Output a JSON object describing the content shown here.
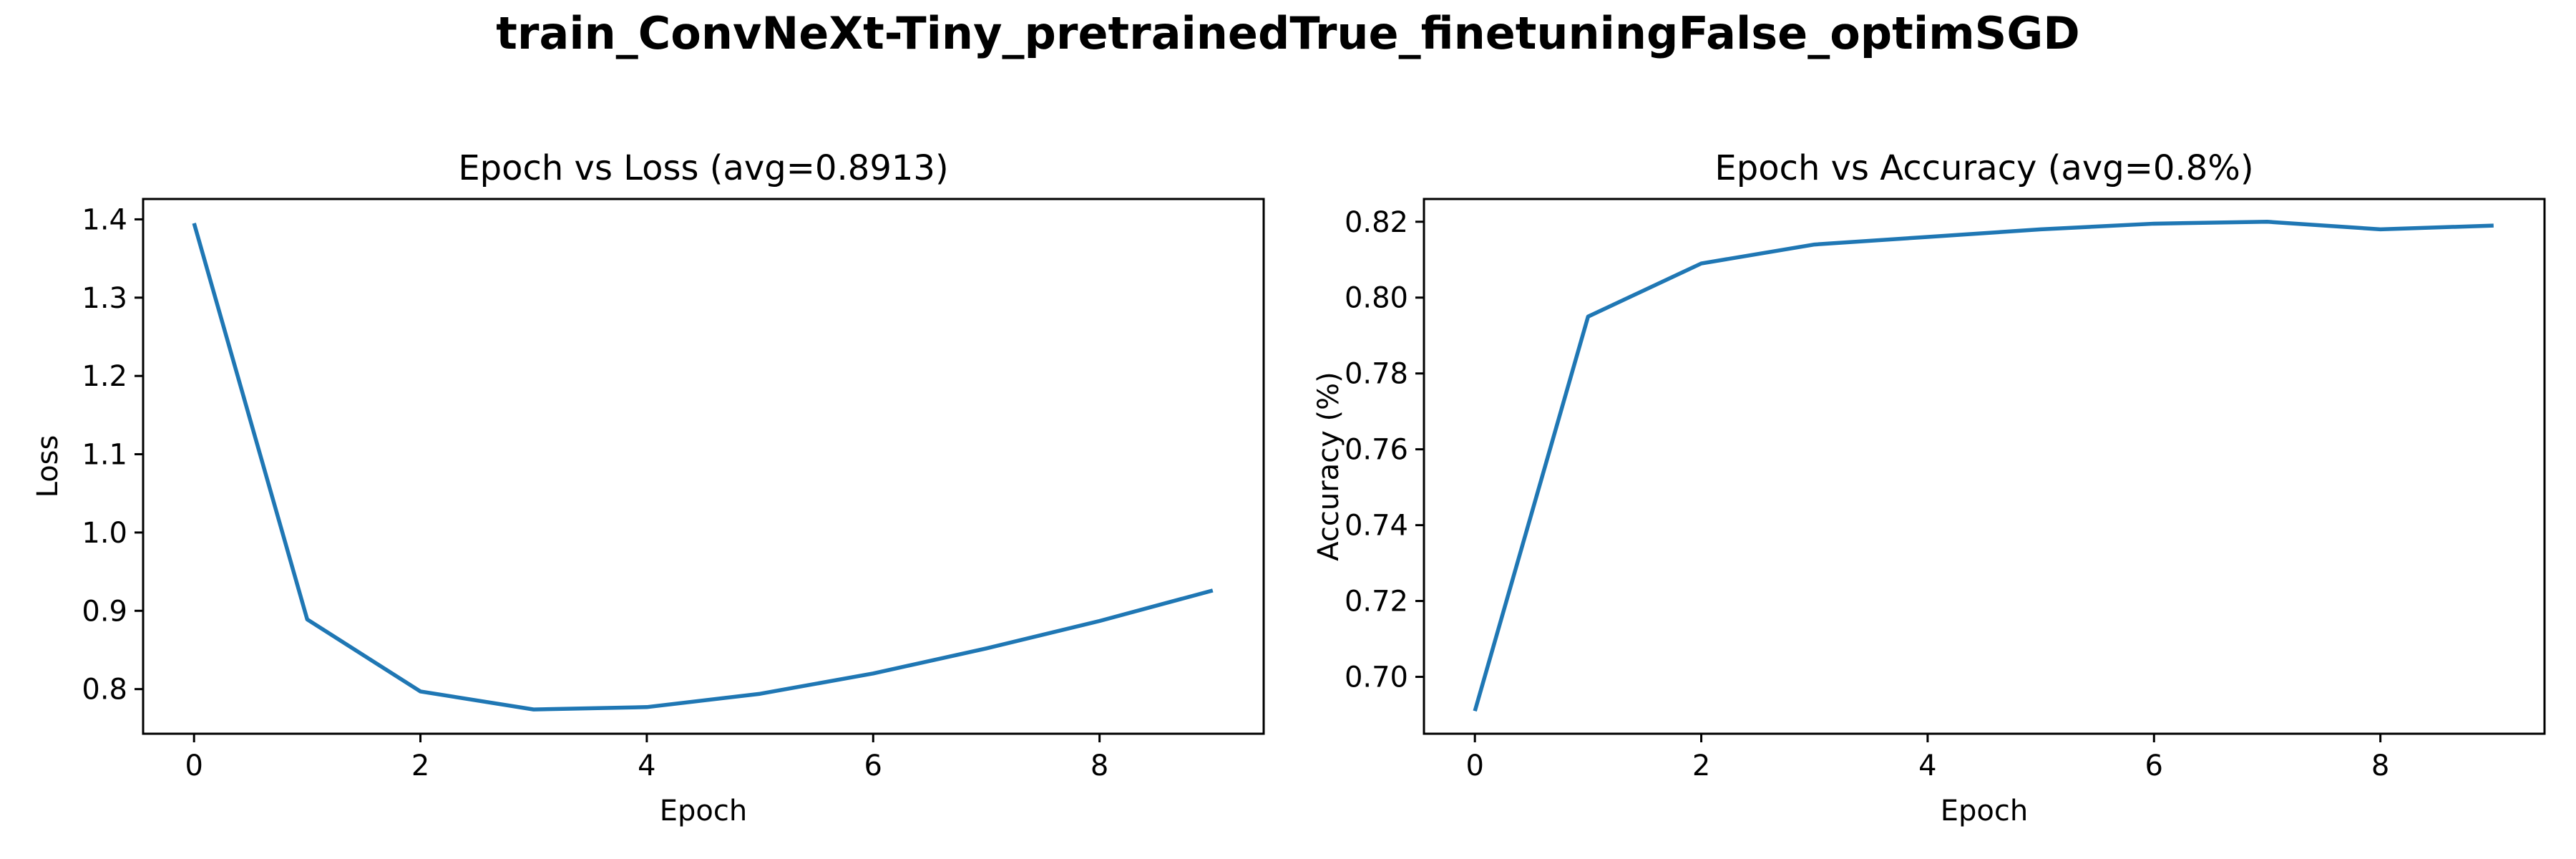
{
  "figure": {
    "title": "train_ConvNeXt-Tiny_pretrainedTrue_finetuningFalse_optimSGD"
  },
  "chart_data": [
    {
      "type": "line",
      "title": "Epoch vs Loss (avg=0.8913)",
      "xlabel": "Epoch",
      "ylabel": "Loss",
      "x": [
        0,
        1,
        2,
        3,
        4,
        5,
        6,
        7,
        8,
        9
      ],
      "series": [
        {
          "values": [
            1.395,
            0.889,
            0.797,
            0.774,
            0.777,
            0.794,
            0.82,
            0.852,
            0.887,
            0.926
          ],
          "color": "#1f77b4"
        }
      ],
      "xlim": [
        -0.45,
        9.45
      ],
      "ylim": [
        0.743,
        1.426
      ],
      "xticks": [
        0,
        2,
        4,
        6,
        8
      ],
      "yticks": [
        0.8,
        0.9,
        1.0,
        1.1,
        1.2,
        1.3,
        1.4
      ],
      "ytick_labels": [
        "0.8",
        "0.9",
        "1.0",
        "1.1",
        "1.2",
        "1.3",
        "1.4"
      ],
      "grid": false,
      "legend": null
    },
    {
      "type": "line",
      "title": "Epoch vs Accuracy (avg=0.8%)",
      "xlabel": "Epoch",
      "ylabel": "Accuracy (%)",
      "x": [
        0,
        1,
        2,
        3,
        4,
        5,
        6,
        7,
        8,
        9
      ],
      "series": [
        {
          "values": [
            0.691,
            0.795,
            0.809,
            0.814,
            0.816,
            0.818,
            0.8195,
            0.82,
            0.818,
            0.819
          ],
          "color": "#1f77b4"
        }
      ],
      "xlim": [
        -0.45,
        9.45
      ],
      "ylim": [
        0.685,
        0.826
      ],
      "xticks": [
        0,
        2,
        4,
        6,
        8
      ],
      "yticks": [
        0.7,
        0.72,
        0.74,
        0.76,
        0.78,
        0.8,
        0.82
      ],
      "ytick_labels": [
        "0.70",
        "0.72",
        "0.74",
        "0.76",
        "0.78",
        "0.80",
        "0.82"
      ],
      "grid": false,
      "legend": null
    }
  ]
}
